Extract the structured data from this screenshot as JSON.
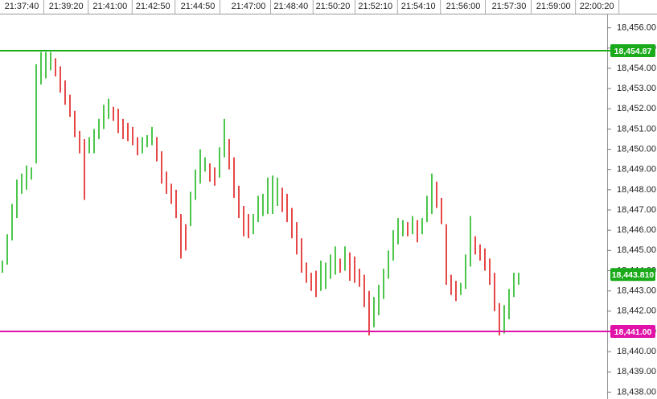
{
  "chart_data": {
    "type": "range-bar",
    "high": [
      18444.5,
      18445.8,
      18447.3,
      18448.5,
      18448.8,
      18449.2,
      18449.1,
      18454.2,
      18454.8,
      18454.8,
      18454.8,
      18454.5,
      18454.1,
      18453.4,
      18452.7,
      18451.9,
      18450.9,
      18450.5,
      18450.6,
      18451,
      18451.5,
      18452.2,
      18452.5,
      18452.1,
      18452,
      18451.5,
      18451.3,
      18451.1,
      18450.6,
      18450.6,
      18450.7,
      18451.1,
      18450.6,
      18449.9,
      18448.9,
      18448.3,
      18448,
      18446.8,
      18446.3,
      18447.9,
      18449,
      18450,
      18449.6,
      18449.3,
      18449.1,
      18450.1,
      18451.5,
      18450.5,
      18449.6,
      18448.2,
      18447.2,
      18446.8,
      18446.8,
      18447.7,
      18447.8,
      18448.6,
      18448.7,
      18448.6,
      18448.1,
      18447.8,
      18447.1,
      18446.4,
      18445.6,
      18444.4,
      18443.9,
      18444,
      18444.5,
      18444.4,
      18444.8,
      18445.2,
      18444.6,
      18445.2,
      18444.9,
      18444.7,
      18444.1,
      18443.8,
      18443,
      18442.7,
      18443.3,
      18444.1,
      18445,
      18446,
      18446.6,
      18446.5,
      18446.4,
      18446.7,
      18446.5,
      18446.6,
      18447.7,
      18448.8,
      18448.4,
      18447.6,
      18446.3,
      18443.8,
      18443.5,
      18443.4,
      18444.8,
      18446.7,
      18445.7,
      18445.3,
      18445.1,
      18444.6,
      18443.9,
      18442.4,
      18442.3,
      18443.1,
      18443.9,
      18443.9
    ],
    "low": [
      18443.9,
      18444.3,
      18445.5,
      18446.6,
      18447.8,
      18448,
      18448.5,
      18449.3,
      18453.2,
      18453.5,
      18453.9,
      18453.6,
      18452.8,
      18452.2,
      18451.6,
      18450.6,
      18449.8,
      18447.5,
      18449.8,
      18449.8,
      18450.5,
      18451,
      18451.5,
      18451.4,
      18450.8,
      18450.5,
      18450.4,
      18450.2,
      18449.7,
      18449.8,
      18450.1,
      18450.2,
      18449.4,
      18448.3,
      18447.8,
      18447.3,
      18446.6,
      18444.6,
      18445,
      18446.2,
      18447.5,
      18448.3,
      18448.9,
      18448.4,
      18448.2,
      18448.6,
      18449.6,
      18449,
      18447.6,
      18446.6,
      18445.7,
      18445.6,
      18445.8,
      18446.4,
      18446.7,
      18446.8,
      18446.8,
      18447.2,
      18446.9,
      18446.4,
      18445.6,
      18444.8,
      18443.9,
      18443.4,
      18443,
      18442.7,
      18443,
      18443.1,
      18443.6,
      18443.8,
      18443.9,
      18444,
      18443.5,
      18443.4,
      18443.2,
      18442.2,
      18440.8,
      18441.2,
      18441.8,
      18442.6,
      18443.6,
      18444.5,
      18445.3,
      18445.7,
      18445.7,
      18445.8,
      18445.4,
      18445.8,
      18446.4,
      18446.8,
      18447.1,
      18446.3,
      18443.3,
      18442.8,
      18442.5,
      18442.8,
      18443.1,
      18444.2,
      18444.8,
      18444.5,
      18444,
      18443.3,
      18442,
      18440.8,
      18440.9,
      18441.6,
      18442.7,
      18443.3
    ],
    "up_color": "#1fb81f",
    "down_color": "#e01b1b",
    "xlim": [
      -0.5,
      126.17
    ],
    "xticks": [
      {
        "value": 4,
        "label": "21:37:40"
      },
      {
        "value": 13.2,
        "label": "21:39:20"
      },
      {
        "value": 22.3,
        "label": "21:41:00"
      },
      {
        "value": 31.2,
        "label": "21:42:50"
      },
      {
        "value": 40.5,
        "label": "21:44:50"
      },
      {
        "value": 51,
        "label": "21:47:00"
      },
      {
        "value": 59.8,
        "label": "21:48:40"
      },
      {
        "value": 68.5,
        "label": "21:50:20"
      },
      {
        "value": 77.3,
        "label": "21:52:10"
      },
      {
        "value": 86.2,
        "label": "21:54:10"
      },
      {
        "value": 95.5,
        "label": "21:56:00"
      },
      {
        "value": 105,
        "label": "21:57:30"
      },
      {
        "value": 114.2,
        "label": "21:59:00"
      },
      {
        "value": 123.2,
        "label": "22:00:20"
      }
    ],
    "ylim": [
      18437.66,
      18456.66
    ],
    "yticks": [
      {
        "value": 18438,
        "label": "18,438.00"
      },
      {
        "value": 18439,
        "label": "18,439.00"
      },
      {
        "value": 18440,
        "label": "18,440.00"
      },
      {
        "value": 18441,
        "label": "18,441.00"
      },
      {
        "value": 18442,
        "label": "18,442.00"
      },
      {
        "value": 18443,
        "label": "18,443.00"
      },
      {
        "value": 18444,
        "label": "18,444.00"
      },
      {
        "value": 18445,
        "label": "18,445.00"
      },
      {
        "value": 18446,
        "label": "18,446.00"
      },
      {
        "value": 18447,
        "label": "18,447.00"
      },
      {
        "value": 18448,
        "label": "18,448.00"
      },
      {
        "value": 18449,
        "label": "18,449.00"
      },
      {
        "value": 18450,
        "label": "18,450.00"
      },
      {
        "value": 18451,
        "label": "18,451.00"
      },
      {
        "value": 18452,
        "label": "18,452.00"
      },
      {
        "value": 18453,
        "label": "18,453.00"
      },
      {
        "value": 18454,
        "label": "18,454.00"
      },
      {
        "value": 18455,
        "label": "18,455.00"
      },
      {
        "value": 18456,
        "label": "18,456.00"
      }
    ],
    "price_lines": [
      {
        "value": 18454.87,
        "label": "18,454.87",
        "color": "#1aaa1a"
      },
      {
        "value": 18441.0,
        "label": "18,441.00",
        "color": "#e012a8"
      }
    ],
    "last_price": {
      "value": 18443.81,
      "label": "18,443.810",
      "color": "#1aaa1a"
    }
  }
}
